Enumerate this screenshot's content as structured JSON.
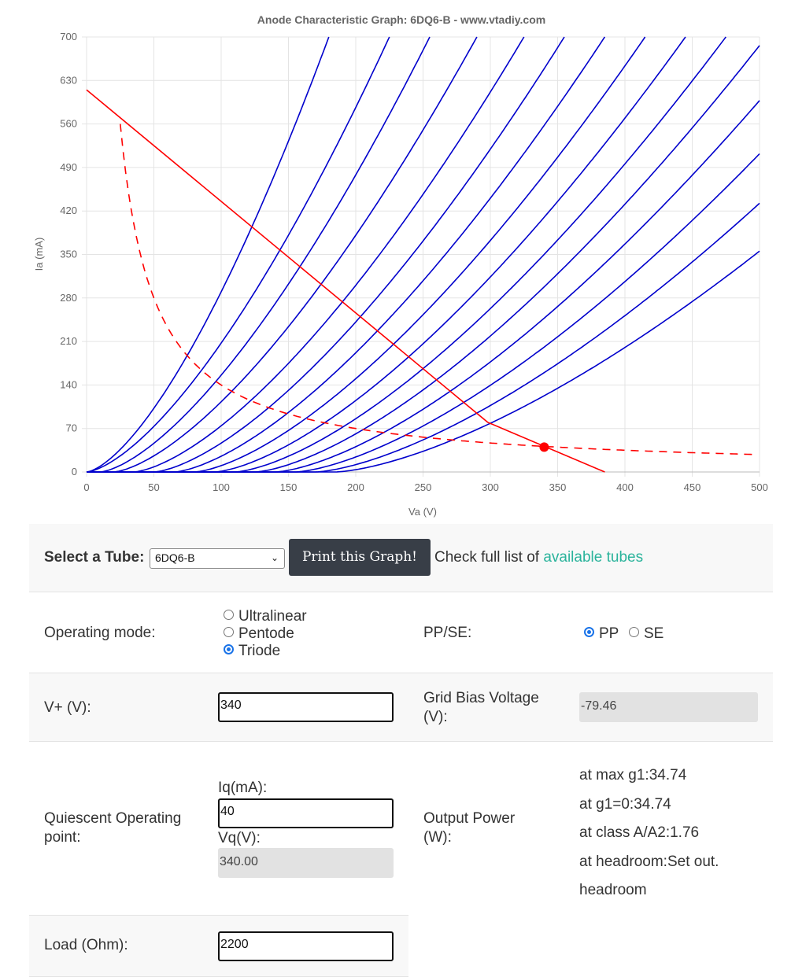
{
  "chart_data": {
    "type": "line",
    "title": "Anode Characteristic Graph: 6DQ6-B - www.vtadiy.com",
    "xlabel": "Va (V)",
    "ylabel": "Ia (mA)",
    "xlim": [
      0,
      500
    ],
    "ylim": [
      0,
      700
    ],
    "x_ticks": [
      0,
      50,
      100,
      150,
      200,
      250,
      300,
      350,
      400,
      450,
      500
    ],
    "y_ticks": [
      0,
      70,
      140,
      210,
      280,
      350,
      420,
      490,
      560,
      630,
      700
    ],
    "grid": true,
    "series_color": "#0000cc",
    "curves_va_at_700ma": [
      180,
      225,
      255,
      290,
      325,
      355,
      385,
      415,
      445,
      475,
      505,
      540,
      580,
      625,
      680
    ],
    "curves_cutoff_va": [
      0,
      0,
      10,
      20,
      35,
      50,
      65,
      80,
      95,
      110,
      125,
      140,
      155,
      170,
      185
    ],
    "load_line": {
      "color": "#ff0000",
      "points": [
        [
          0,
          615
        ],
        [
          298,
          80
        ],
        [
          385,
          0
        ]
      ]
    },
    "max_dissipation_curve": {
      "color": "#ff0000",
      "style": "dashed",
      "watts": 14,
      "va_range": [
        25,
        500
      ]
    },
    "operating_point": {
      "va": 340,
      "ia": 40,
      "color": "#ff0000"
    }
  },
  "controls": {
    "select_label": "Select a Tube:",
    "selected_tube": "6DQ6-B",
    "print_button": "Print this Graph!",
    "check_text": "Check full list of",
    "available_link": "available tubes"
  },
  "mode": {
    "label": "Operating mode:",
    "options": [
      "Ultralinear",
      "Pentode",
      "Triode"
    ],
    "selected": "Triode"
  },
  "ppse": {
    "label": "PP/SE:",
    "options": [
      "PP",
      "SE"
    ],
    "selected": "PP"
  },
  "vplus": {
    "label": "V+ (V):",
    "value": "340"
  },
  "grid_bias": {
    "label": "Grid Bias Voltage (V):",
    "value": "-79.46"
  },
  "quiescent": {
    "label": "Quiescent Operating point:",
    "iq_label": "Iq(mA):",
    "iq_value": "40",
    "vq_label": "Vq(V):",
    "vq_value": "340.00"
  },
  "output_power": {
    "label": "Output Power (W):",
    "lines": [
      "at max g1:34.74",
      "at g1=0:34.74",
      "at class A/A2:1.76",
      "at headroom:Set out.",
      "headroom"
    ]
  },
  "load": {
    "label": "Load (Ohm):",
    "value": "2200"
  },
  "colors": {
    "accent": "#2ab39b",
    "button": "#383e47",
    "radio": "#1a73e8"
  }
}
